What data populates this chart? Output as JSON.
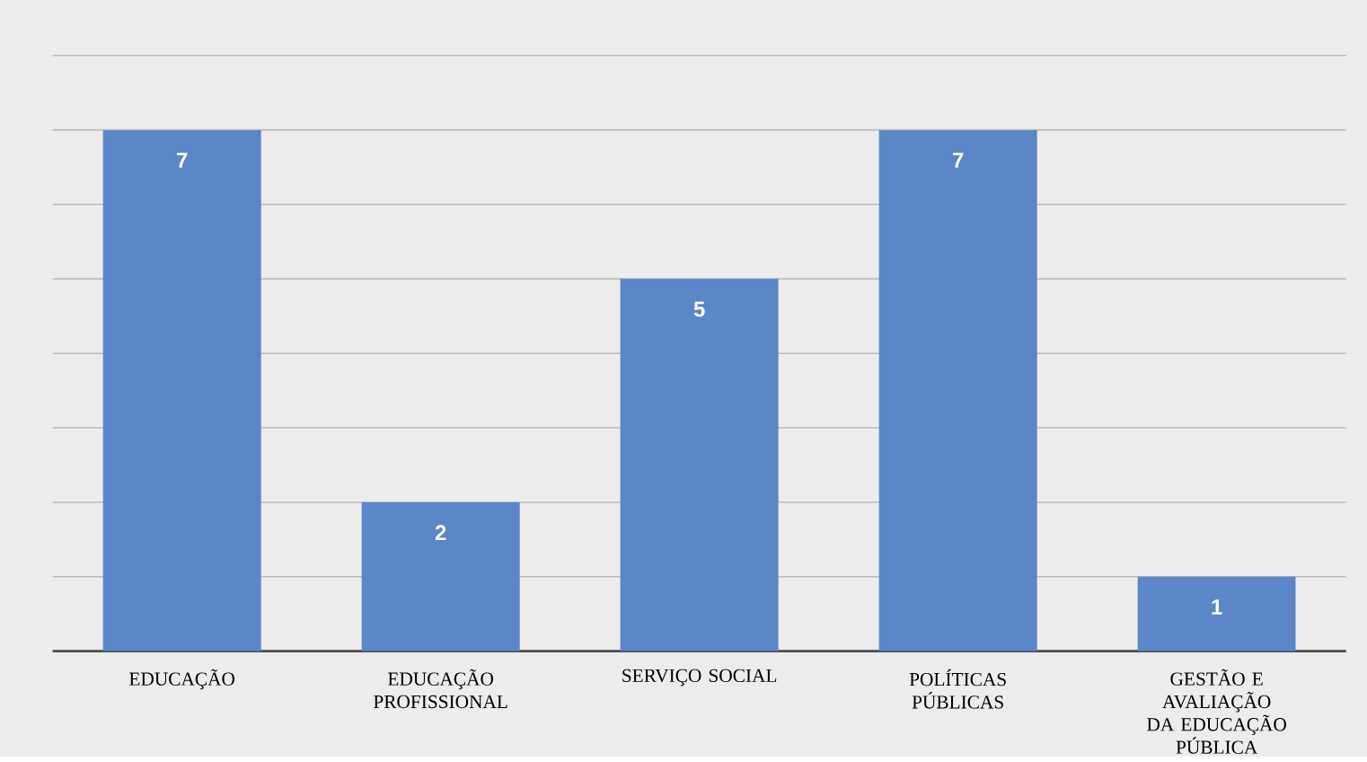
{
  "chart_data": {
    "type": "bar",
    "categories": [
      "EDUCAÇÃO",
      "EDUCAÇÃO PROFISSIONAL",
      "SERVIÇO SOCIAL",
      "POLÍTICAS PÚBLICAS",
      "GESTÃO E AVALIAÇÃO DA EDUCAÇÃO PÚBLICA"
    ],
    "values": [
      7,
      2,
      5,
      7,
      1
    ],
    "color": "#5b86c8",
    "tick_labels": "x",
    "grid": "y",
    "data_labels": true
  }
}
